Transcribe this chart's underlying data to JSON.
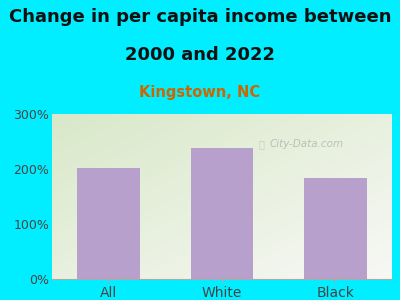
{
  "title_line1": "Change in per capita income between",
  "title_line2": "2000 and 2022",
  "subtitle": "Kingstown, NC",
  "categories": [
    "All",
    "White",
    "Black"
  ],
  "values": [
    202,
    238,
    183
  ],
  "bar_color": "#b8a0cc",
  "title_fontsize": 13,
  "subtitle_fontsize": 10.5,
  "subtitle_color": "#cc6600",
  "background_outer": "#00eeff",
  "grad_color_topleft": "#d8e8c8",
  "grad_color_bottomright": "#f5f5f0",
  "ylim": [
    0,
    300
  ],
  "yticks": [
    0,
    100,
    200,
    300
  ],
  "ytick_labels": [
    "0%",
    "100%",
    "200%",
    "300%"
  ],
  "watermark": "City-Data.com",
  "axis_line_color": "#aaaaaa",
  "tick_color": "#444444"
}
